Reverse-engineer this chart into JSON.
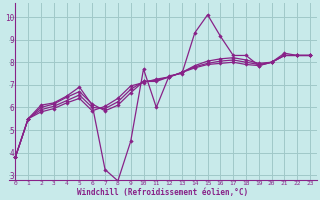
{
  "bg_color": "#c8eaea",
  "grid_color": "#a0c8c8",
  "line_color": "#882288",
  "spine_color": "#882288",
  "xlabel": "Windchill (Refroidissement éolien,°C)",
  "xlim": [
    -0.5,
    23.5
  ],
  "ylim": [
    2.8,
    10.6
  ],
  "yticks": [
    3,
    4,
    5,
    6,
    7,
    8,
    9,
    10
  ],
  "xticks": [
    0,
    1,
    2,
    3,
    4,
    5,
    6,
    7,
    8,
    9,
    10,
    11,
    12,
    13,
    14,
    15,
    16,
    17,
    18,
    19,
    20,
    21,
    22,
    23
  ],
  "series1_x": [
    0,
    1,
    2,
    3,
    4,
    5,
    6,
    7,
    8,
    9,
    10,
    11,
    12,
    13,
    14,
    15,
    16,
    17,
    18,
    19,
    20,
    21,
    22,
    23
  ],
  "series1_y": [
    3.8,
    5.5,
    6.1,
    6.2,
    6.5,
    6.9,
    6.1,
    3.25,
    2.75,
    4.5,
    7.7,
    6.0,
    7.4,
    7.5,
    9.3,
    10.1,
    9.15,
    8.3,
    8.3,
    7.85,
    8.0,
    8.4,
    8.3,
    8.3
  ],
  "series2_x": [
    0,
    1,
    2,
    3,
    4,
    5,
    6,
    7,
    8,
    9,
    10,
    11,
    12,
    13,
    14,
    15,
    16,
    17,
    18,
    19,
    20,
    21,
    22,
    23
  ],
  "series2_y": [
    3.8,
    5.5,
    6.0,
    6.15,
    6.45,
    6.7,
    6.15,
    5.85,
    6.1,
    6.65,
    7.15,
    7.15,
    7.35,
    7.55,
    7.85,
    8.05,
    8.15,
    8.2,
    8.1,
    7.95,
    8.0,
    8.3,
    8.3,
    8.3
  ],
  "series3_x": [
    0,
    1,
    2,
    3,
    4,
    5,
    6,
    7,
    8,
    9,
    10,
    11,
    12,
    13,
    14,
    15,
    16,
    17,
    18,
    19,
    20,
    21,
    22,
    23
  ],
  "series3_y": [
    3.8,
    5.5,
    5.9,
    6.05,
    6.3,
    6.55,
    6.0,
    5.95,
    6.25,
    6.8,
    7.15,
    7.2,
    7.35,
    7.55,
    7.8,
    7.95,
    8.05,
    8.1,
    8.0,
    7.9,
    8.0,
    8.3,
    8.3,
    8.3
  ],
  "series4_x": [
    0,
    1,
    2,
    3,
    4,
    5,
    6,
    7,
    8,
    9,
    10,
    11,
    12,
    13,
    14,
    15,
    16,
    17,
    18,
    19,
    20,
    21,
    22,
    23
  ],
  "series4_y": [
    3.8,
    5.5,
    5.8,
    5.95,
    6.2,
    6.4,
    5.85,
    6.05,
    6.4,
    6.95,
    7.1,
    7.25,
    7.35,
    7.55,
    7.75,
    7.9,
    7.95,
    8.0,
    7.9,
    7.85,
    8.0,
    8.3,
    8.3,
    8.3
  ]
}
